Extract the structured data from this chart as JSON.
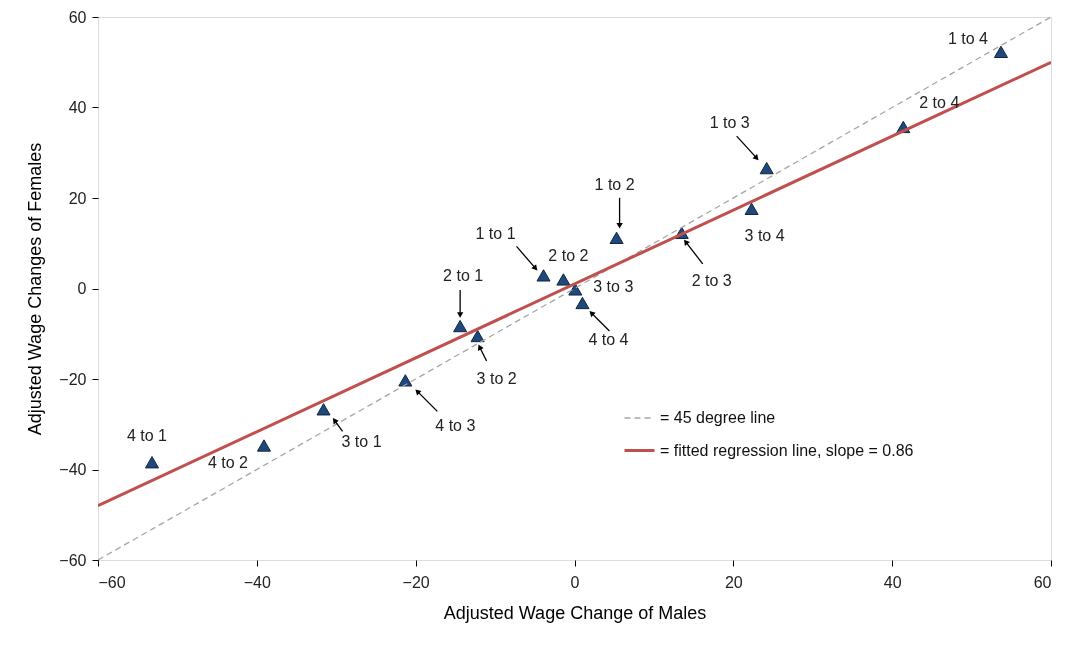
{
  "chart_data": {
    "type": "scatter",
    "xlabel": "Adjusted Wage Change of Males",
    "ylabel": "Adjusted Wage Changes of Females",
    "xlim": [
      -60,
      60
    ],
    "ylim": [
      -60,
      60
    ],
    "xticks": [
      -60,
      -40,
      -20,
      0,
      20,
      40,
      60
    ],
    "yticks": [
      -60,
      -40,
      -20,
      0,
      20,
      40,
      60
    ],
    "grid": false,
    "legend": "bottom right",
    "series": [
      {
        "color": "#1f497d",
        "marker": "triangle",
        "x": [
          -53.2,
          -39.1,
          -31.6,
          -21.3,
          -12.2,
          -14.4,
          -3.9,
          -1.4,
          0.1,
          1.0,
          5.3,
          13.5,
          22.3,
          24.2,
          41.4,
          53.7
        ],
        "values": [
          -38.4,
          -34.7,
          -26.7,
          -20.3,
          -10.5,
          -8.3,
          2.9,
          2.0,
          -0.2,
          -3.2,
          11.2,
          12.3,
          17.6,
          26.6,
          35.7,
          52.3
        ]
      },
      {
        "type": "line",
        "name": "= 45 degree line",
        "color": "#a6a6a6",
        "line_style": "dashed",
        "x": [
          -60,
          60
        ],
        "values": [
          -60,
          60
        ]
      },
      {
        "type": "line",
        "name": "= fitted regression line, slope = 0.86",
        "color": "#c0504d",
        "line_style": "solid",
        "x": [
          -60,
          60
        ],
        "values": [
          -48,
          50
        ]
      }
    ],
    "annotations": [
      {
        "text": "4 to 1",
        "x": -53.2,
        "y": -38.4
      },
      {
        "text": "4 to 2",
        "x": -39.1,
        "y": -34.7
      },
      {
        "text": "3 to 1",
        "x": -31.6,
        "y": -26.7
      },
      {
        "text": "4 to 3",
        "x": -21.3,
        "y": -20.3
      },
      {
        "text": "3 to 2",
        "x": -12.2,
        "y": -10.5
      },
      {
        "text": "2 to 1",
        "x": -14.4,
        "y": -8.3
      },
      {
        "text": "1 to 1",
        "x": -3.9,
        "y": 2.9
      },
      {
        "text": "2 to 2",
        "x": -1.4,
        "y": 2.0
      },
      {
        "text": "3 to 3",
        "x": 0.1,
        "y": -0.2
      },
      {
        "text": "4 to 4",
        "x": 1.0,
        "y": -3.2
      },
      {
        "text": "1 to 2",
        "x": 5.3,
        "y": 11.2
      },
      {
        "text": "2 to 3",
        "x": 13.5,
        "y": 12.3
      },
      {
        "text": "3 to 4",
        "x": 22.3,
        "y": 17.6
      },
      {
        "text": "1 to 3",
        "x": 24.2,
        "y": 26.6
      },
      {
        "text": "2 to 4",
        "x": 41.4,
        "y": 35.7
      },
      {
        "text": "1 to 4",
        "x": 53.7,
        "y": 52.3
      }
    ]
  }
}
